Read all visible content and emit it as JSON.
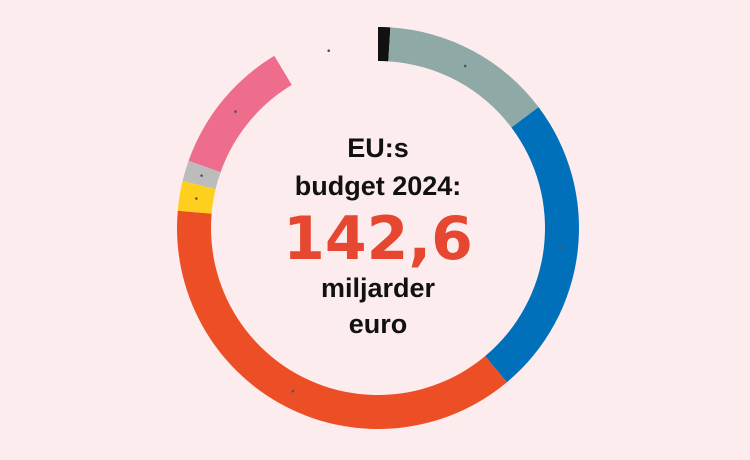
{
  "chart_data": {
    "type": "pie",
    "style": "donut",
    "total": 142.6,
    "segments": [
      {
        "value": 1.4,
        "color": "#111111"
      },
      {
        "value": 19.6,
        "color": "#8fa9a6"
      },
      {
        "value": 34.5,
        "color": "#0070bb"
      },
      {
        "value": 53.4,
        "color": "#ec4e25"
      },
      {
        "value": 3.4,
        "color": "#ffcf1e"
      },
      {
        "value": 2.4,
        "color": "#bcbcbc"
      },
      {
        "value": 15.6,
        "color": "#ef6d8c"
      },
      {
        "value": 12.3,
        "color": "#fdeced"
      }
    ]
  },
  "center": {
    "line1": "EU:s",
    "line2": "budget 2024:",
    "value": "142,6",
    "line3": "miljarder",
    "line4": "euro"
  },
  "colors": {
    "background": "#fdeced",
    "value_color": "#e64730",
    "text_color": "#111111",
    "marker_dot": "#555555"
  }
}
